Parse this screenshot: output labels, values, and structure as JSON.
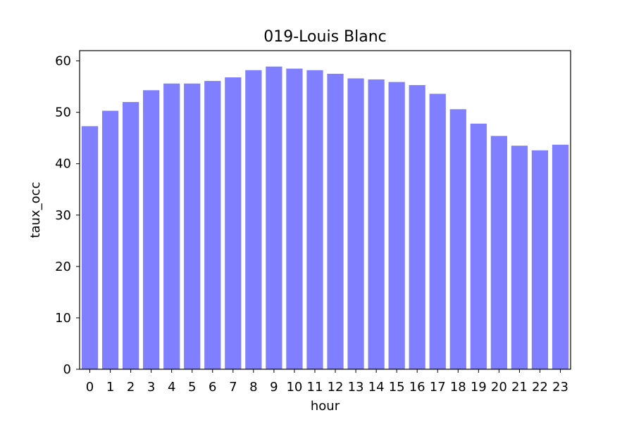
{
  "chart_data": {
    "type": "bar",
    "title": "019-Louis Blanc",
    "xlabel": "hour",
    "ylabel": "taux_occ",
    "categories": [
      "0",
      "1",
      "2",
      "3",
      "4",
      "5",
      "6",
      "7",
      "8",
      "9",
      "10",
      "11",
      "12",
      "13",
      "14",
      "15",
      "16",
      "17",
      "18",
      "19",
      "20",
      "21",
      "22",
      "23"
    ],
    "values": [
      47.3,
      50.3,
      52.0,
      54.3,
      55.6,
      55.6,
      56.1,
      56.8,
      58.2,
      58.9,
      58.5,
      58.2,
      57.5,
      56.6,
      56.4,
      55.9,
      55.3,
      53.6,
      50.6,
      47.8,
      45.4,
      43.5,
      42.6,
      43.7
    ],
    "ylim": [
      0,
      62
    ],
    "yticks": [
      "0",
      "10",
      "20",
      "30",
      "40",
      "50",
      "60"
    ],
    "grid": false,
    "legend": "none",
    "bar_color": "#7f7fff",
    "axis_color": "#000000"
  }
}
